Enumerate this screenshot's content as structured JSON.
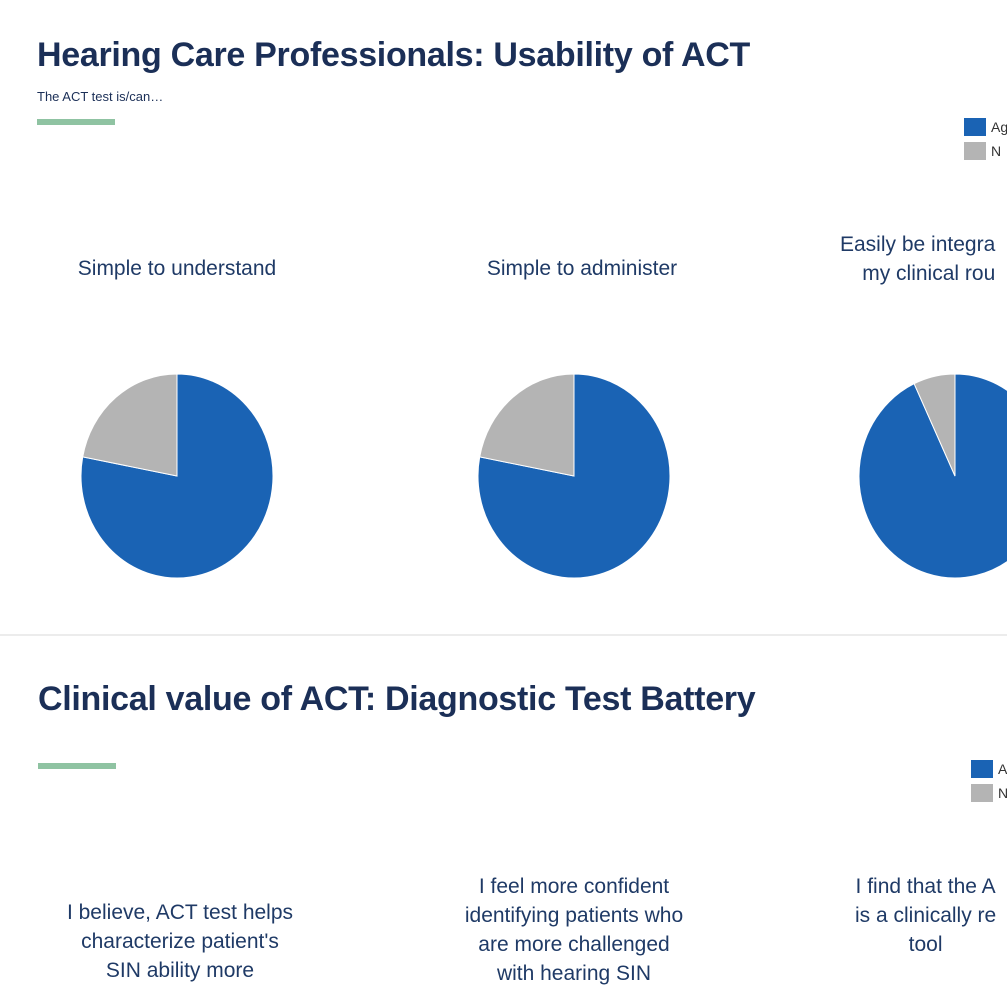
{
  "slides": [
    {
      "title": "Hearing Care Professionals: Usability of ACT",
      "subtitle": "The ACT test is/can…",
      "legend": [
        {
          "label": "Ag",
          "color": "#1a63b4"
        },
        {
          "label": "N",
          "color": "#b4b4b4"
        }
      ]
    },
    {
      "title": "Clinical value of ACT: Diagnostic Test Battery",
      "legend": [
        {
          "label": "A",
          "color": "#1a63b4"
        },
        {
          "label": "N",
          "color": "#b4b4b4"
        }
      ]
    }
  ],
  "chart_data": [
    {
      "type": "pie",
      "title": "Simple to understand",
      "labels": [
        "Ag",
        "N"
      ],
      "values": [
        78,
        22
      ],
      "colors": [
        "#1a63b4",
        "#b4b4b4"
      ]
    },
    {
      "type": "pie",
      "title": "Simple to administer",
      "labels": [
        "Ag",
        "N"
      ],
      "values": [
        78,
        22
      ],
      "colors": [
        "#1a63b4",
        "#b4b4b4"
      ]
    },
    {
      "type": "pie",
      "title": "Easily be integra\nmy clinical rou",
      "labels": [
        "Ag",
        "N"
      ],
      "values": [
        93,
        7
      ],
      "colors": [
        "#1a63b4",
        "#b4b4b4"
      ]
    },
    {
      "type": "pie",
      "title": "I believe, ACT test helps\ncharacterize patient's\nSIN ability more",
      "labels": [
        "A",
        "N"
      ]
    },
    {
      "type": "pie",
      "title": "I feel more confident\nidentifying patients who\nare more challenged\nwith hearing SIN",
      "labels": [
        "A",
        "N"
      ]
    },
    {
      "type": "pie",
      "title": "I find that the A\nis a clinically re\ntool",
      "labels": [
        "A",
        "N"
      ]
    }
  ]
}
